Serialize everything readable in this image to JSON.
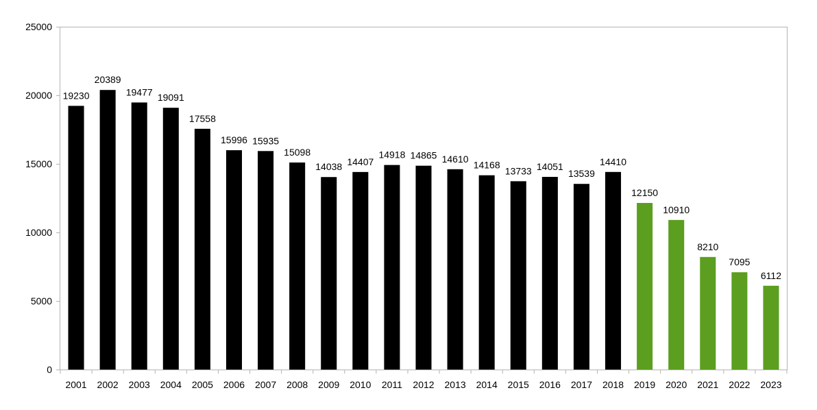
{
  "chart_data": {
    "type": "bar",
    "title": "",
    "xlabel": "",
    "ylabel": "",
    "ylim": [
      0,
      25000
    ],
    "yticks": [
      0,
      5000,
      10000,
      15000,
      20000,
      25000
    ],
    "grid": false,
    "legend": "none",
    "categories": [
      "2001",
      "2002",
      "2003",
      "2004",
      "2005",
      "2006",
      "2007",
      "2008",
      "2009",
      "2010",
      "2011",
      "2012",
      "2013",
      "2014",
      "2015",
      "2016",
      "2017",
      "2018",
      "2019",
      "2020",
      "2021",
      "2022",
      "2023"
    ],
    "values": [
      19230,
      20389,
      19477,
      19091,
      17558,
      15996,
      15935,
      15098,
      14038,
      14407,
      14918,
      14865,
      14610,
      14168,
      13733,
      14051,
      13539,
      14410,
      12150,
      10910,
      8210,
      7095,
      6112
    ],
    "colors": {
      "primary": "#000000",
      "highlight": "#5c9e1f"
    },
    "highlight_from_category": "2019"
  }
}
